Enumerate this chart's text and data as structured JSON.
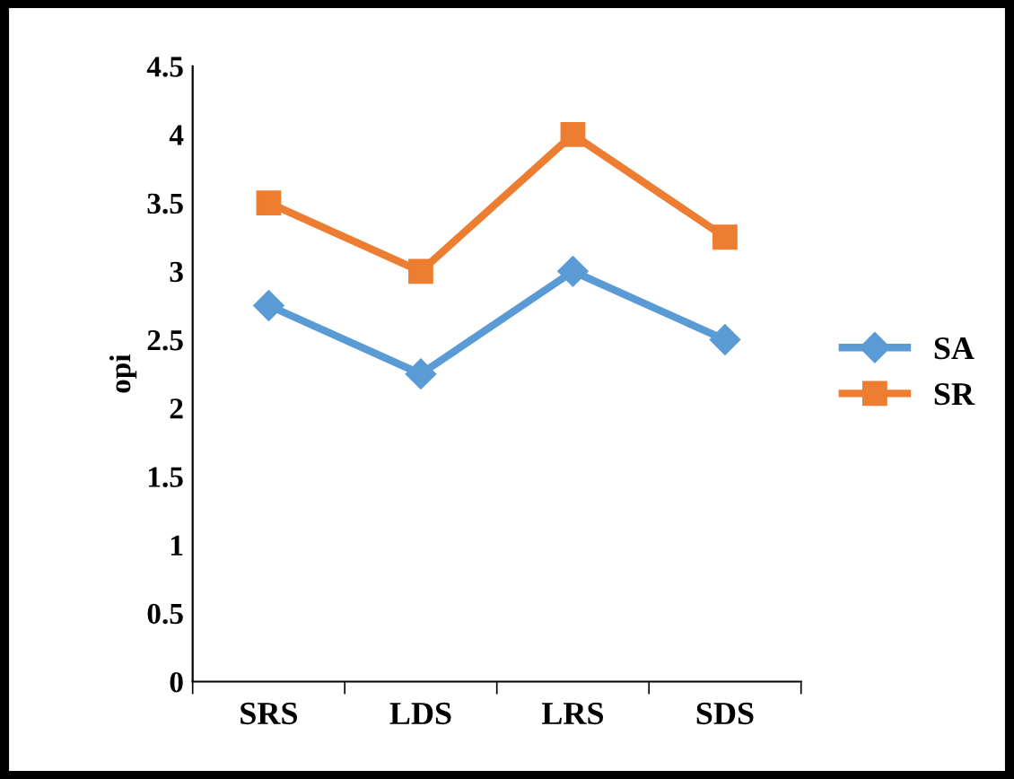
{
  "chart_data": {
    "type": "line",
    "ylabel": "opi",
    "categories": [
      "SRS",
      "LDS",
      "LRS",
      "SDS"
    ],
    "series": [
      {
        "name": "SA",
        "color": "#5b9bd5",
        "marker": "diamond",
        "values": [
          2.75,
          2.25,
          3,
          2.5
        ]
      },
      {
        "name": "SR",
        "color": "#ed7d31",
        "marker": "square",
        "values": [
          3.5,
          3,
          4,
          3.25
        ]
      }
    ],
    "ylim": [
      0,
      4.5
    ],
    "yticks": [
      0,
      0.5,
      1,
      1.5,
      2,
      2.5,
      3,
      3.5,
      4,
      4.5
    ],
    "grid": false,
    "legend": "right",
    "line_style": "solid"
  }
}
